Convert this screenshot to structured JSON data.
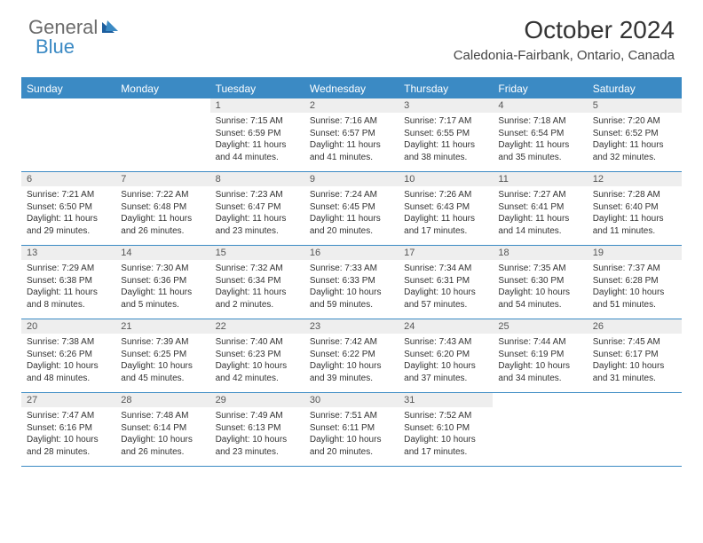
{
  "brand": {
    "part1": "General",
    "part2": "Blue"
  },
  "title": "October 2024",
  "location": "Caledonia-Fairbank, Ontario, Canada",
  "colors": {
    "accent": "#3b8ac4",
    "header_bg": "#3b8ac4",
    "daynum_bg": "#eeeeee",
    "text": "#333333",
    "grid_line": "#3b8ac4"
  },
  "day_names": [
    "Sunday",
    "Monday",
    "Tuesday",
    "Wednesday",
    "Thursday",
    "Friday",
    "Saturday"
  ],
  "weeks": [
    [
      {
        "day": null
      },
      {
        "day": null
      },
      {
        "day": 1,
        "sunrise": "7:15 AM",
        "sunset": "6:59 PM",
        "daylight": "11 hours and 44 minutes."
      },
      {
        "day": 2,
        "sunrise": "7:16 AM",
        "sunset": "6:57 PM",
        "daylight": "11 hours and 41 minutes."
      },
      {
        "day": 3,
        "sunrise": "7:17 AM",
        "sunset": "6:55 PM",
        "daylight": "11 hours and 38 minutes."
      },
      {
        "day": 4,
        "sunrise": "7:18 AM",
        "sunset": "6:54 PM",
        "daylight": "11 hours and 35 minutes."
      },
      {
        "day": 5,
        "sunrise": "7:20 AM",
        "sunset": "6:52 PM",
        "daylight": "11 hours and 32 minutes."
      }
    ],
    [
      {
        "day": 6,
        "sunrise": "7:21 AM",
        "sunset": "6:50 PM",
        "daylight": "11 hours and 29 minutes."
      },
      {
        "day": 7,
        "sunrise": "7:22 AM",
        "sunset": "6:48 PM",
        "daylight": "11 hours and 26 minutes."
      },
      {
        "day": 8,
        "sunrise": "7:23 AM",
        "sunset": "6:47 PM",
        "daylight": "11 hours and 23 minutes."
      },
      {
        "day": 9,
        "sunrise": "7:24 AM",
        "sunset": "6:45 PM",
        "daylight": "11 hours and 20 minutes."
      },
      {
        "day": 10,
        "sunrise": "7:26 AM",
        "sunset": "6:43 PM",
        "daylight": "11 hours and 17 minutes."
      },
      {
        "day": 11,
        "sunrise": "7:27 AM",
        "sunset": "6:41 PM",
        "daylight": "11 hours and 14 minutes."
      },
      {
        "day": 12,
        "sunrise": "7:28 AM",
        "sunset": "6:40 PM",
        "daylight": "11 hours and 11 minutes."
      }
    ],
    [
      {
        "day": 13,
        "sunrise": "7:29 AM",
        "sunset": "6:38 PM",
        "daylight": "11 hours and 8 minutes."
      },
      {
        "day": 14,
        "sunrise": "7:30 AM",
        "sunset": "6:36 PM",
        "daylight": "11 hours and 5 minutes."
      },
      {
        "day": 15,
        "sunrise": "7:32 AM",
        "sunset": "6:34 PM",
        "daylight": "11 hours and 2 minutes."
      },
      {
        "day": 16,
        "sunrise": "7:33 AM",
        "sunset": "6:33 PM",
        "daylight": "10 hours and 59 minutes."
      },
      {
        "day": 17,
        "sunrise": "7:34 AM",
        "sunset": "6:31 PM",
        "daylight": "10 hours and 57 minutes."
      },
      {
        "day": 18,
        "sunrise": "7:35 AM",
        "sunset": "6:30 PM",
        "daylight": "10 hours and 54 minutes."
      },
      {
        "day": 19,
        "sunrise": "7:37 AM",
        "sunset": "6:28 PM",
        "daylight": "10 hours and 51 minutes."
      }
    ],
    [
      {
        "day": 20,
        "sunrise": "7:38 AM",
        "sunset": "6:26 PM",
        "daylight": "10 hours and 48 minutes."
      },
      {
        "day": 21,
        "sunrise": "7:39 AM",
        "sunset": "6:25 PM",
        "daylight": "10 hours and 45 minutes."
      },
      {
        "day": 22,
        "sunrise": "7:40 AM",
        "sunset": "6:23 PM",
        "daylight": "10 hours and 42 minutes."
      },
      {
        "day": 23,
        "sunrise": "7:42 AM",
        "sunset": "6:22 PM",
        "daylight": "10 hours and 39 minutes."
      },
      {
        "day": 24,
        "sunrise": "7:43 AM",
        "sunset": "6:20 PM",
        "daylight": "10 hours and 37 minutes."
      },
      {
        "day": 25,
        "sunrise": "7:44 AM",
        "sunset": "6:19 PM",
        "daylight": "10 hours and 34 minutes."
      },
      {
        "day": 26,
        "sunrise": "7:45 AM",
        "sunset": "6:17 PM",
        "daylight": "10 hours and 31 minutes."
      }
    ],
    [
      {
        "day": 27,
        "sunrise": "7:47 AM",
        "sunset": "6:16 PM",
        "daylight": "10 hours and 28 minutes."
      },
      {
        "day": 28,
        "sunrise": "7:48 AM",
        "sunset": "6:14 PM",
        "daylight": "10 hours and 26 minutes."
      },
      {
        "day": 29,
        "sunrise": "7:49 AM",
        "sunset": "6:13 PM",
        "daylight": "10 hours and 23 minutes."
      },
      {
        "day": 30,
        "sunrise": "7:51 AM",
        "sunset": "6:11 PM",
        "daylight": "10 hours and 20 minutes."
      },
      {
        "day": 31,
        "sunrise": "7:52 AM",
        "sunset": "6:10 PM",
        "daylight": "10 hours and 17 minutes."
      },
      {
        "day": null
      },
      {
        "day": null
      }
    ]
  ],
  "labels": {
    "sunrise": "Sunrise:",
    "sunset": "Sunset:",
    "daylight": "Daylight:"
  }
}
